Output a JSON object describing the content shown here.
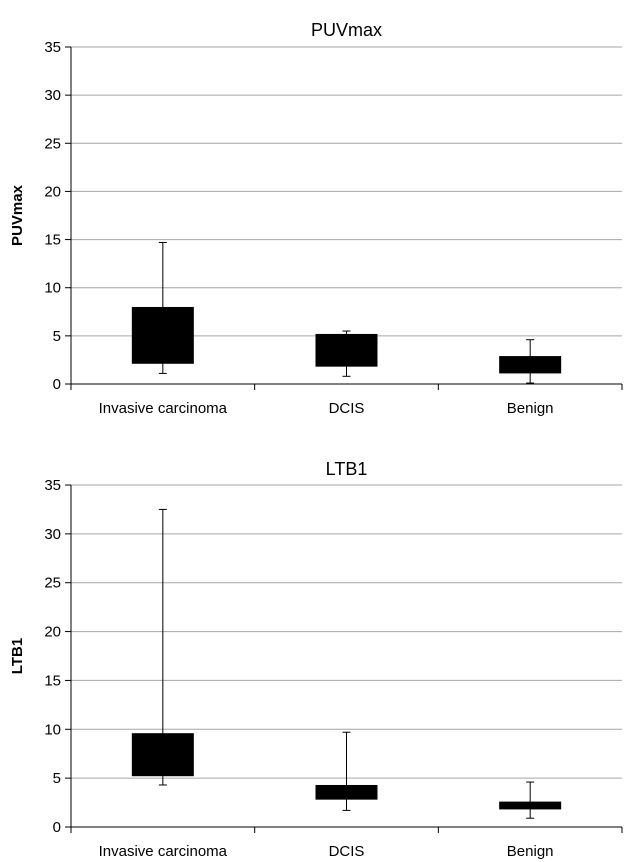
{
  "chart_data": [
    {
      "type": "box",
      "title": "PUVmax",
      "xlabel": "",
      "ylabel": "PUVmax",
      "ylim": [
        0,
        35
      ],
      "yticks": [
        0,
        5,
        10,
        15,
        20,
        25,
        30,
        35
      ],
      "grid": true,
      "categories": [
        "Invasive carcinoma",
        "DCIS",
        "Benign"
      ],
      "boxes": [
        {
          "min": 1.1,
          "q1": 2.1,
          "q3": 8.0,
          "max": 14.7
        },
        {
          "min": 0.8,
          "q1": 1.8,
          "q3": 5.2,
          "max": 5.5
        },
        {
          "min": 0.1,
          "q1": 1.1,
          "q3": 2.9,
          "max": 4.6
        }
      ],
      "box_color": "#000000"
    },
    {
      "type": "box",
      "title": "LTB1",
      "xlabel": "",
      "ylabel": "LTB1",
      "ylim": [
        0,
        35
      ],
      "yticks": [
        0,
        5,
        10,
        15,
        20,
        25,
        30,
        35
      ],
      "grid": true,
      "categories": [
        "Invasive carcinoma",
        "DCIS",
        "Benign"
      ],
      "boxes": [
        {
          "min": 4.3,
          "q1": 5.2,
          "q3": 9.6,
          "max": 32.5
        },
        {
          "min": 1.7,
          "q1": 2.8,
          "q3": 4.3,
          "max": 9.7
        },
        {
          "min": 0.9,
          "q1": 1.8,
          "q3": 2.6,
          "max": 4.6
        }
      ],
      "box_color": "#000000"
    }
  ]
}
